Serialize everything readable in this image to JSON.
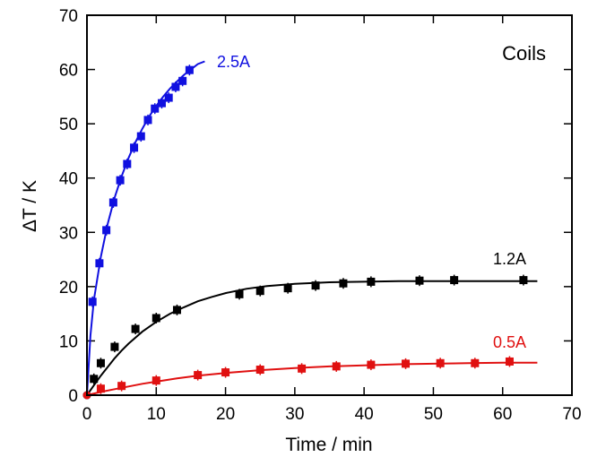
{
  "chart_data": {
    "type": "scatter",
    "title": "Coils",
    "xlabel": "Time / min",
    "ylabel": "ΔT / K",
    "xlim": [
      0,
      70
    ],
    "ylim": [
      0,
      70
    ],
    "xticks": [
      0,
      10,
      20,
      30,
      40,
      50,
      60,
      70
    ],
    "yticks": [
      0,
      10,
      20,
      30,
      40,
      50,
      60,
      70
    ],
    "grid": false,
    "legend": "none",
    "series": [
      {
        "name": "2.5A",
        "color": "#1010e0",
        "points": [
          [
            0,
            0
          ],
          [
            0.8,
            17.2
          ],
          [
            1.8,
            24.3
          ],
          [
            2.8,
            30.4
          ],
          [
            3.8,
            35.5
          ],
          [
            4.8,
            39.6
          ],
          [
            5.8,
            42.6
          ],
          [
            6.8,
            45.6
          ],
          [
            7.8,
            47.7
          ],
          [
            8.8,
            50.7
          ],
          [
            9.8,
            52.8
          ],
          [
            10.8,
            53.8
          ],
          [
            11.8,
            54.8
          ],
          [
            12.8,
            56.8
          ],
          [
            13.8,
            57.9
          ],
          [
            14.8,
            59.9
          ]
        ],
        "fit": [
          [
            0,
            0
          ],
          [
            0.5,
            11
          ],
          [
            1,
            17.5
          ],
          [
            2,
            25.5
          ],
          [
            3,
            31.6
          ],
          [
            4,
            36.4
          ],
          [
            5,
            40.3
          ],
          [
            6,
            43.7
          ],
          [
            7,
            46.6
          ],
          [
            8,
            49.1
          ],
          [
            9,
            51.4
          ],
          [
            10,
            53.3
          ],
          [
            11,
            55.0
          ],
          [
            12,
            56.5
          ],
          [
            13,
            57.8
          ],
          [
            14,
            59.0
          ],
          [
            15,
            60.0
          ],
          [
            16,
            61.0
          ],
          [
            17,
            61.5
          ]
        ]
      },
      {
        "name": "1.2A",
        "color": "#000000",
        "points": [
          [
            0,
            0
          ],
          [
            1,
            3.0
          ],
          [
            2,
            5.9
          ],
          [
            4,
            8.9
          ],
          [
            7,
            12.2
          ],
          [
            10,
            14.2
          ],
          [
            13,
            15.7
          ],
          [
            22,
            18.6
          ],
          [
            25,
            19.2
          ],
          [
            29,
            19.7
          ],
          [
            33,
            20.2
          ],
          [
            37,
            20.6
          ],
          [
            41,
            20.9
          ],
          [
            48,
            21.1
          ],
          [
            53,
            21.2
          ],
          [
            63,
            21.2
          ]
        ],
        "fit": [
          [
            0,
            0
          ],
          [
            1,
            1.8
          ],
          [
            2,
            3.6
          ],
          [
            3,
            5.2
          ],
          [
            4,
            6.8
          ],
          [
            5,
            8.2
          ],
          [
            6,
            9.5
          ],
          [
            8,
            11.7
          ],
          [
            10,
            13.5
          ],
          [
            12,
            15.0
          ],
          [
            14,
            16.2
          ],
          [
            16,
            17.3
          ],
          [
            18,
            18.1
          ],
          [
            20,
            18.8
          ],
          [
            23,
            19.6
          ],
          [
            26,
            20.1
          ],
          [
            30,
            20.5
          ],
          [
            35,
            20.8
          ],
          [
            40,
            20.9
          ],
          [
            45,
            21.0
          ],
          [
            50,
            21.0
          ],
          [
            55,
            21.0
          ],
          [
            60,
            21.0
          ],
          [
            65,
            21.0
          ]
        ]
      },
      {
        "name": "0.5A",
        "color": "#e01010",
        "points": [
          [
            0,
            0
          ],
          [
            2,
            1.2
          ],
          [
            5,
            1.7
          ],
          [
            10,
            2.7
          ],
          [
            16,
            3.7
          ],
          [
            20,
            4.2
          ],
          [
            25,
            4.7
          ],
          [
            31,
            4.9
          ],
          [
            36,
            5.3
          ],
          [
            41,
            5.6
          ],
          [
            46,
            5.8
          ],
          [
            51,
            5.9
          ],
          [
            56,
            5.9
          ],
          [
            61,
            6.2
          ]
        ],
        "fit": [
          [
            0,
            0
          ],
          [
            2,
            0.6
          ],
          [
            4,
            1.1
          ],
          [
            6,
            1.6
          ],
          [
            8,
            2.1
          ],
          [
            10,
            2.5
          ],
          [
            13,
            3.1
          ],
          [
            16,
            3.6
          ],
          [
            20,
            4.1
          ],
          [
            25,
            4.6
          ],
          [
            30,
            5.0
          ],
          [
            35,
            5.3
          ],
          [
            40,
            5.5
          ],
          [
            45,
            5.7
          ],
          [
            50,
            5.8
          ],
          [
            55,
            5.9
          ],
          [
            60,
            6.0
          ],
          [
            65,
            6.0
          ]
        ]
      }
    ]
  }
}
